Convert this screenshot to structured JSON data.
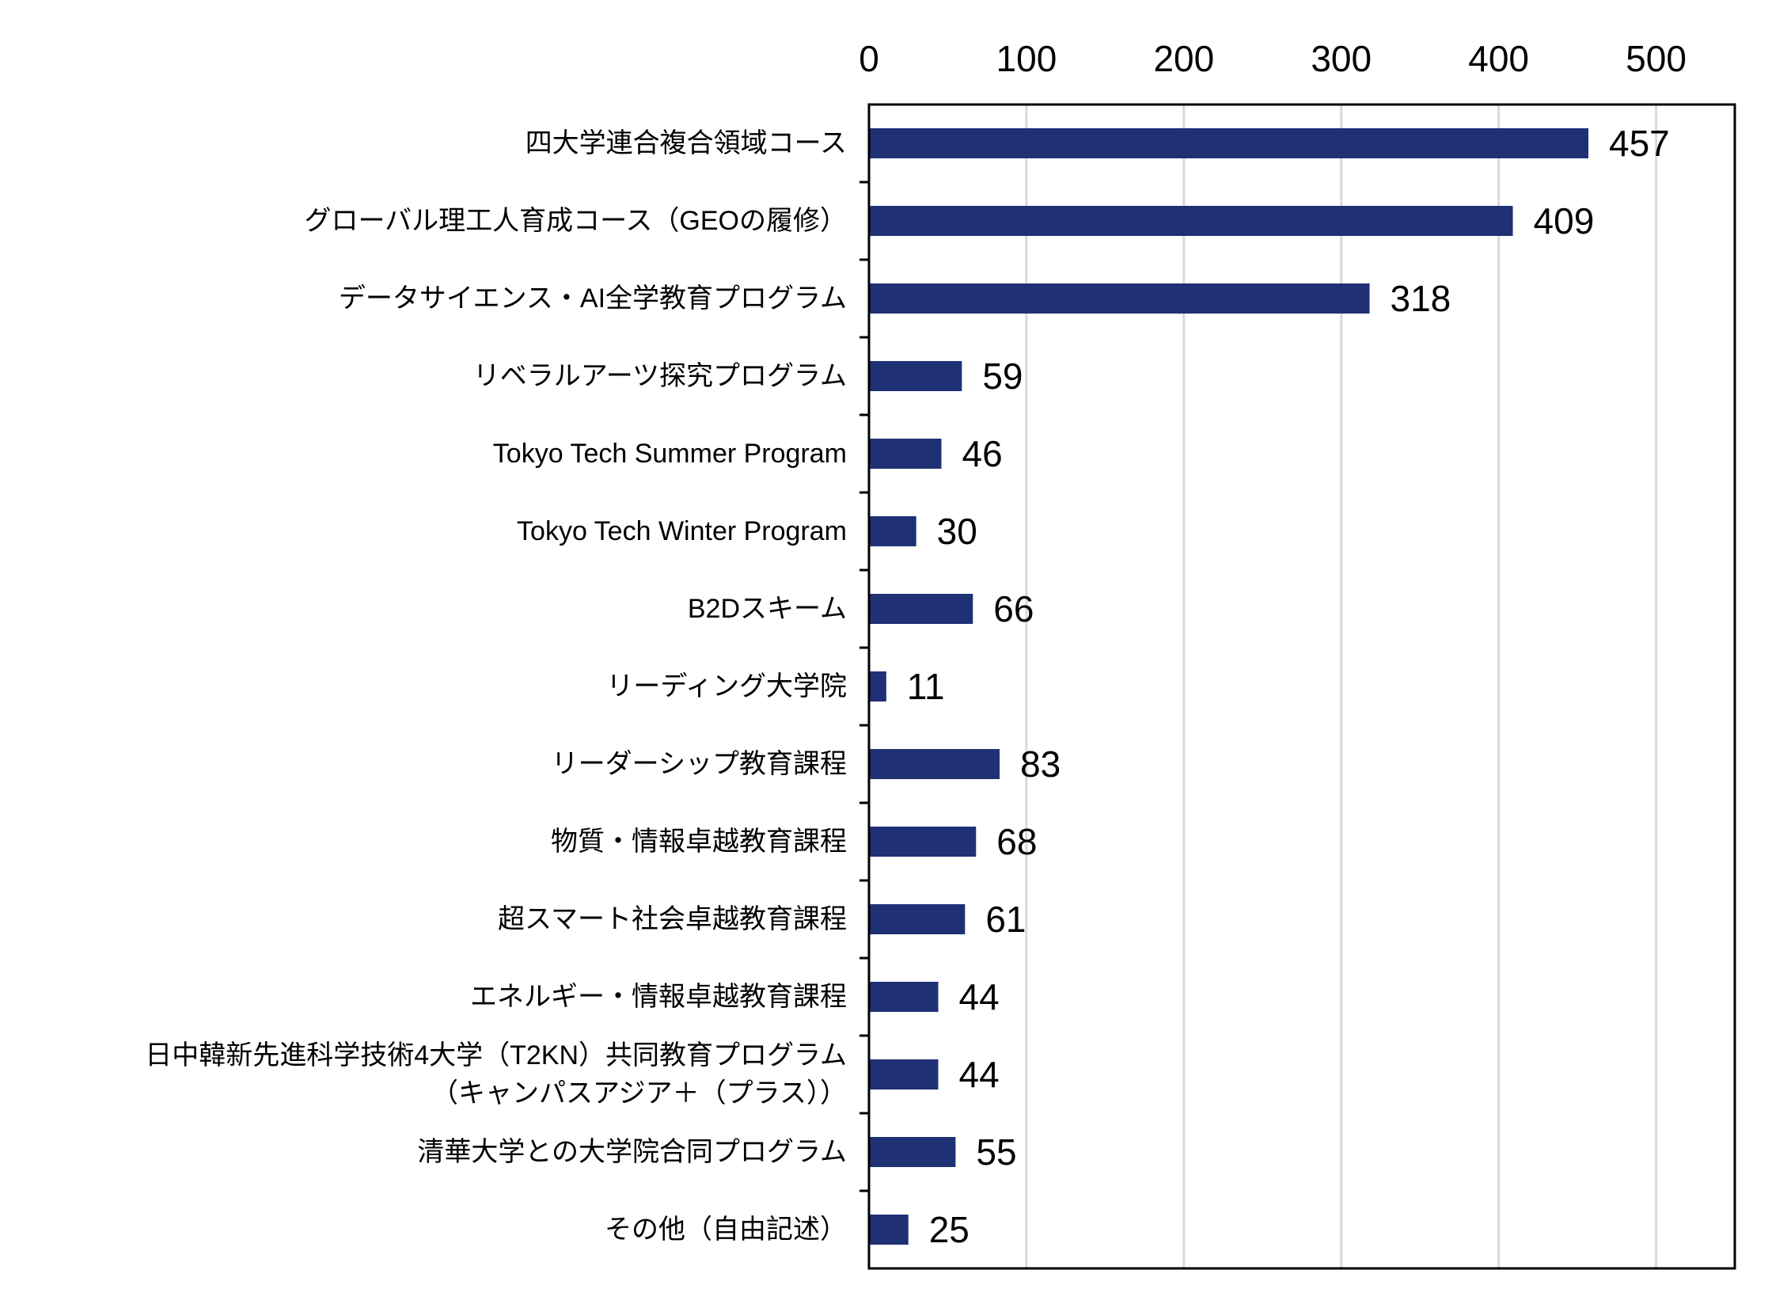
{
  "chart_data": {
    "type": "bar",
    "orientation": "horizontal",
    "categories": [
      [
        "四大学連合複合領域コース"
      ],
      [
        "グローバル理工人育成コース（GEOの履修）"
      ],
      [
        "データサイエンス・AI全学教育プログラム"
      ],
      [
        "リベラルアーツ探究プログラム"
      ],
      [
        "Tokyo Tech Summer Program"
      ],
      [
        "Tokyo Tech Winter Program"
      ],
      [
        "B2Dスキーム"
      ],
      [
        "リーディング大学院"
      ],
      [
        "リーダーシップ教育課程"
      ],
      [
        "物質・情報卓越教育課程"
      ],
      [
        "超スマート社会卓越教育課程"
      ],
      [
        "エネルギー・情報卓越教育課程"
      ],
      [
        "日中韓新先進科学技術4大学（T2KN）共同教育プログラム",
        "（キャンパスアジア＋（プラス））"
      ],
      [
        "清華大学との大学院合同プログラム"
      ],
      [
        "その他（自由記述）"
      ]
    ],
    "values": [
      457,
      409,
      318,
      59,
      46,
      30,
      66,
      11,
      83,
      68,
      61,
      44,
      44,
      55,
      25
    ],
    "xlim": [
      0,
      550
    ],
    "xticks": [
      0,
      100,
      200,
      300,
      400,
      500
    ],
    "x_axis_position": "top",
    "grid": true,
    "legend": "none",
    "bar_color": "#1f3075",
    "grid_color": "#d9d9d9",
    "title": "",
    "xlabel": "",
    "ylabel": ""
  }
}
